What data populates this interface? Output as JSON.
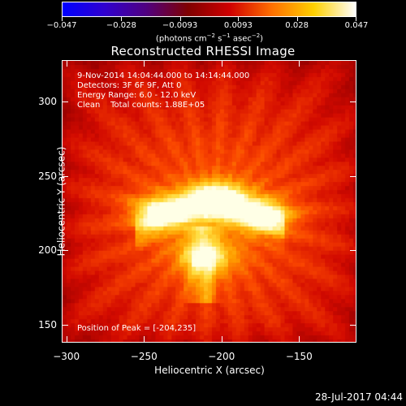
{
  "chart_data": {
    "type": "heatmap",
    "title": "Reconstructed RHESSI Image",
    "xlabel": "Heliocentric X (arcsec)",
    "ylabel": "Heliocentric Y (arcsec)",
    "xlim": [
      -303,
      -113
    ],
    "ylim": [
      138,
      328
    ],
    "x_ticks": [
      -300,
      -250,
      -200,
      -150
    ],
    "y_ticks": [
      150,
      200,
      250,
      300
    ],
    "colorbar": {
      "min": -0.047,
      "max": 0.047,
      "tick_values": [
        -0.047,
        -0.028,
        -0.0093,
        0.0093,
        0.028,
        0.047
      ],
      "tick_labels": [
        "−0.047",
        "−0.028",
        "−0.0093",
        "0.0093",
        "0.028",
        "0.047"
      ],
      "units_prefix": "(photons cm",
      "units_exp1": "−2",
      "units_mid": " s",
      "units_exp2": "−1",
      "units_mid2": " asec",
      "units_exp3": "−2",
      "units_suffix": ")",
      "colormap": [
        "#0000ff",
        "#3000d0",
        "#500080",
        "#800000",
        "#d00000",
        "#ff7000",
        "#ffd000",
        "#ffffff"
      ]
    },
    "annotations": {
      "time_range": "9-Nov-2014 14:04:44.000 to 14:14:44.000",
      "detectors": "Detectors: 3F 6F 9F, Att 0",
      "energy": "Energy Range: 6.0 - 12.0 keV",
      "clean": "Clean    Total counts: 1.88E+05",
      "peak": "Position of Peak = [-204,235]"
    },
    "peak_position": [
      -204,
      235
    ],
    "sources": [
      {
        "x": -204,
        "y": 235,
        "intensity": 1.0
      },
      {
        "x": -240,
        "y": 226,
        "intensity": 0.8
      },
      {
        "x": -172,
        "y": 224,
        "intensity": 0.75
      },
      {
        "x": -210,
        "y": 195,
        "intensity": 0.6
      }
    ]
  },
  "footer": {
    "timestamp": "28-Jul-2017 04:44"
  }
}
